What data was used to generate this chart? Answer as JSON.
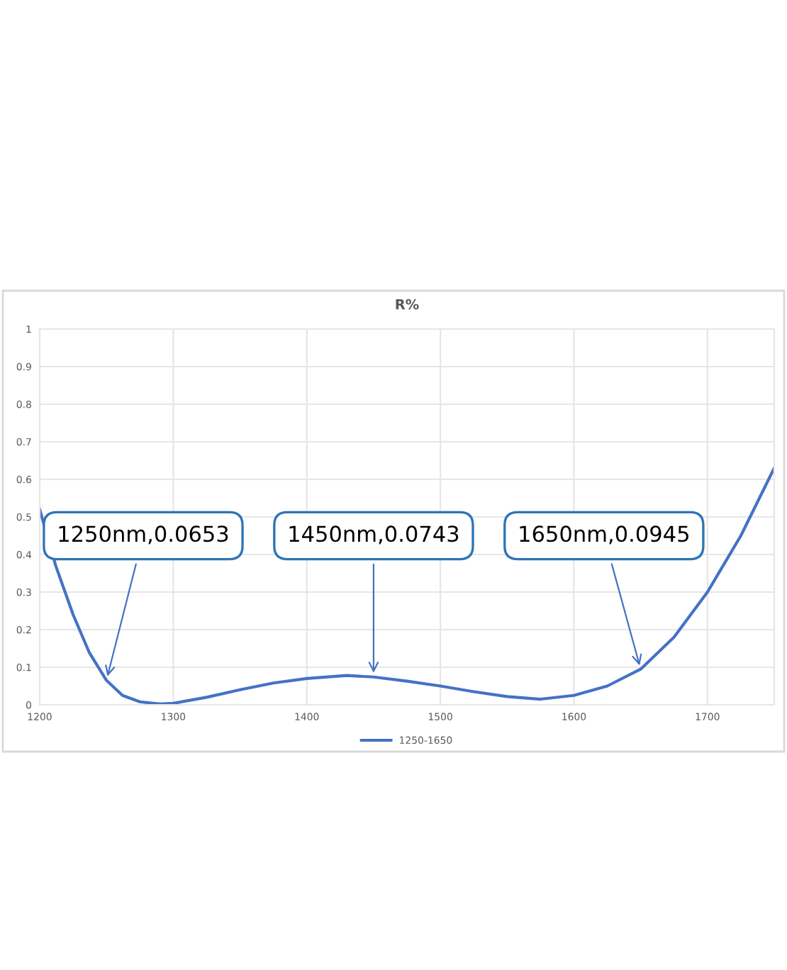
{
  "chart_data": {
    "type": "line",
    "title": "R%",
    "x": [
      1200,
      1212,
      1225,
      1237,
      1250,
      1262,
      1275,
      1290,
      1300,
      1325,
      1350,
      1375,
      1400,
      1430,
      1450,
      1475,
      1500,
      1525,
      1550,
      1575,
      1600,
      1625,
      1650,
      1675,
      1700,
      1725,
      1750
    ],
    "series": [
      {
        "name": "1250-1650",
        "color": "#4472c4",
        "values": [
          0.52,
          0.37,
          0.24,
          0.14,
          0.065,
          0.025,
          0.008,
          0.002,
          0.004,
          0.02,
          0.04,
          0.058,
          0.07,
          0.078,
          0.074,
          0.063,
          0.05,
          0.035,
          0.022,
          0.015,
          0.025,
          0.05,
          0.095,
          0.18,
          0.3,
          0.45,
          0.63
        ]
      }
    ],
    "xlim": [
      1200,
      1750
    ],
    "xticks": [
      1200,
      1300,
      1400,
      1500,
      1600,
      1700
    ],
    "ylim": [
      0,
      1
    ],
    "yticks": [
      0,
      0.1,
      0.2,
      0.3,
      0.4,
      0.5,
      0.6,
      0.7,
      0.8,
      0.9,
      1
    ],
    "grid": true,
    "legend": "bottom",
    "annotations": [
      {
        "text": "1250nm,0.0653",
        "x": 1250,
        "y": 0.0653
      },
      {
        "text": "1450nm,0.0743",
        "x": 1450,
        "y": 0.0743
      },
      {
        "text": "1650nm,0.0945",
        "x": 1650,
        "y": 0.0945
      }
    ]
  }
}
